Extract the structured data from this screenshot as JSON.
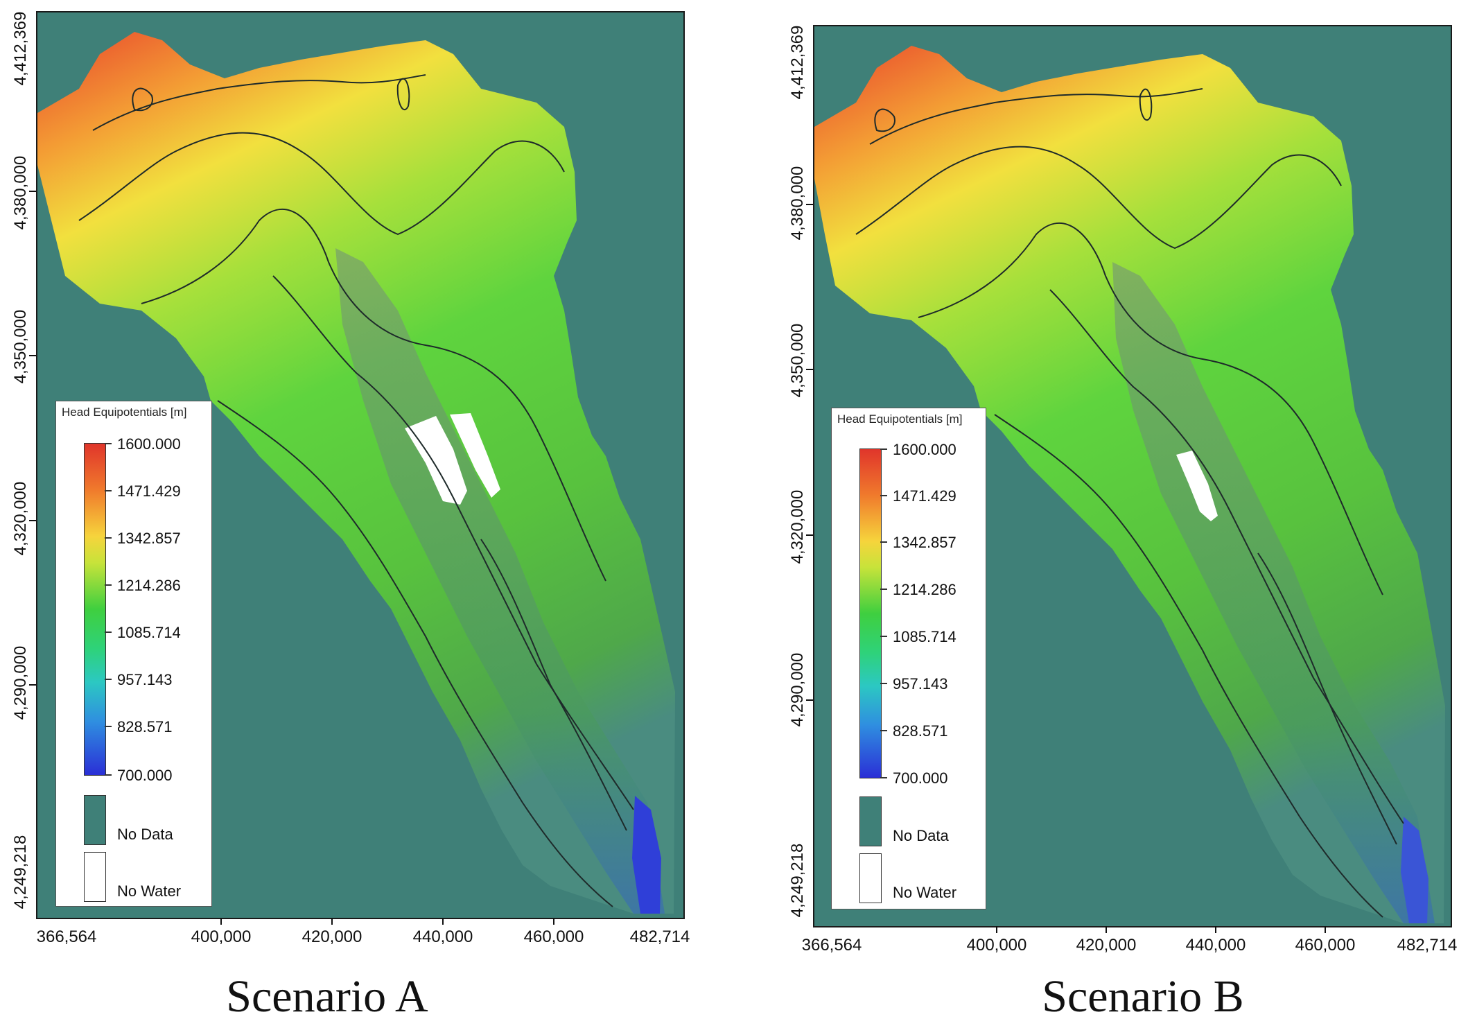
{
  "panels": [
    {
      "caption": "Scenario A",
      "x_ticks": [
        "366,564",
        "400,000",
        "420,000",
        "440,000",
        "460,000",
        "482,714"
      ],
      "y_ticks": [
        "4,412,369",
        "4,380,000",
        "4,350,000",
        "4,320,000",
        "4,290,000",
        "4,249,218"
      ],
      "legend": {
        "title": "Head Equipotentials [m]",
        "values": [
          "1600.000",
          "1471.429",
          "1342.857",
          "1214.286",
          "1085.714",
          "957.143",
          "828.571",
          "700.000"
        ],
        "no_data": "No Data",
        "no_water": "No Water"
      }
    },
    {
      "caption": "Scenario B",
      "x_ticks": [
        "366,564",
        "400,000",
        "420,000",
        "440,000",
        "460,000",
        "482,714"
      ],
      "y_ticks": [
        "4,412,369",
        "4,380,000",
        "4,350,000",
        "4,320,000",
        "4,290,000",
        "4,249,218"
      ],
      "legend": {
        "title": "Head Equipotentials [m]",
        "values": [
          "1600.000",
          "1471.429",
          "1342.857",
          "1214.286",
          "1085.714",
          "957.143",
          "828.571",
          "700.000"
        ],
        "no_data": "No Data",
        "no_water": "No Water"
      }
    }
  ],
  "colors": {
    "no_data": "#3f8078",
    "no_water": "#ffffff",
    "head_high": "#e0352b",
    "head_low": "#2a2fd6"
  }
}
